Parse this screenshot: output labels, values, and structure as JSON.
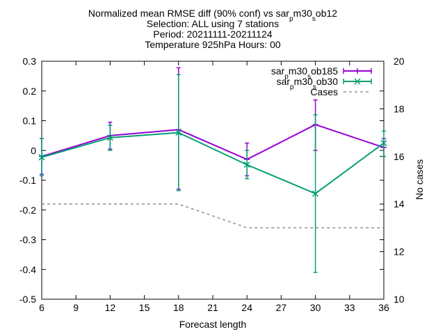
{
  "chart_data": {
    "type": "line",
    "title_lines": [
      "Normalized mean RMSE diff (90% conf) vs sar_pm30_sob12",
      "Selection: ALL using     7 stations",
      "Period: 20211111-20211124",
      "Temperature 925hPa   Hours: 00"
    ],
    "title_runs": [
      [
        {
          "t": "Normalized mean RMSE diff (90% conf) vs sar"
        },
        {
          "t": "p",
          "sub": true
        },
        {
          "t": "m30"
        },
        {
          "t": "s",
          "sub": true
        },
        {
          "t": "ob12"
        }
      ],
      [
        {
          "t": "Selection: ALL using     7 stations"
        }
      ],
      [
        {
          "t": "Period: 20211111-20211124"
        }
      ],
      [
        {
          "t": "Temperature 925hPa   Hours: 00"
        }
      ]
    ],
    "xlabel": "Forecast length",
    "ylabel_right": "No cases",
    "x_ticks": [
      "6",
      "9",
      "12",
      "15",
      "18",
      "21",
      "24",
      "27",
      "30",
      "33",
      "36"
    ],
    "y_ticks": [
      "0.3",
      "0.2",
      "0.1",
      "0",
      "-0.1",
      "-0.2",
      "-0.3",
      "-0.4",
      "-0.5"
    ],
    "y2_ticks": [
      "20",
      "18",
      "16",
      "14",
      "12",
      "10"
    ],
    "xlim": [
      6,
      36
    ],
    "ylim": [
      -0.5,
      0.3
    ],
    "y2lim": [
      10,
      20
    ],
    "grid": false,
    "legend_position": "top-right",
    "series": [
      {
        "name": "sar_pm30_sob185",
        "label_runs": [
          {
            "t": "sar"
          },
          {
            "t": "p",
            "sub": true
          },
          {
            "t": "m30"
          },
          {
            "t": "s",
            "sub": true
          },
          {
            "t": "ob185"
          }
        ],
        "color": "#9400d3",
        "marker": "plus",
        "axis": "y",
        "x": [
          6,
          12,
          18,
          24,
          30,
          36
        ],
        "y": [
          -0.02,
          0.05,
          0.07,
          -0.03,
          0.087,
          0.01
        ],
        "err_low": [
          -0.08,
          0.005,
          -0.13,
          -0.085,
          0.0,
          -0.02
        ],
        "err_high": [
          0.04,
          0.095,
          0.278,
          0.025,
          0.17,
          0.04
        ]
      },
      {
        "name": "sar_pm30_sob30",
        "label_runs": [
          {
            "t": "sar"
          },
          {
            "t": "p",
            "sub": true
          },
          {
            "t": "m30"
          },
          {
            "t": "s",
            "sub": true
          },
          {
            "t": "ob30"
          }
        ],
        "color": "#009e73",
        "marker": "cross",
        "axis": "y",
        "x": [
          6,
          12,
          18,
          24,
          30,
          36
        ],
        "y": [
          -0.023,
          0.043,
          0.06,
          -0.048,
          -0.145,
          0.025
        ],
        "err_low": [
          -0.085,
          0.0,
          -0.135,
          -0.095,
          -0.41,
          -0.02
        ],
        "err_high": [
          0.04,
          0.085,
          0.255,
          0.0,
          0.12,
          0.065
        ]
      },
      {
        "name": "Cases",
        "label_runs": [
          {
            "t": "Cases"
          }
        ],
        "color": "#909090",
        "dashed": true,
        "axis": "y2",
        "x": [
          6,
          12,
          18,
          24,
          30,
          36
        ],
        "y": [
          14,
          14,
          14,
          13,
          13,
          13
        ]
      }
    ]
  }
}
